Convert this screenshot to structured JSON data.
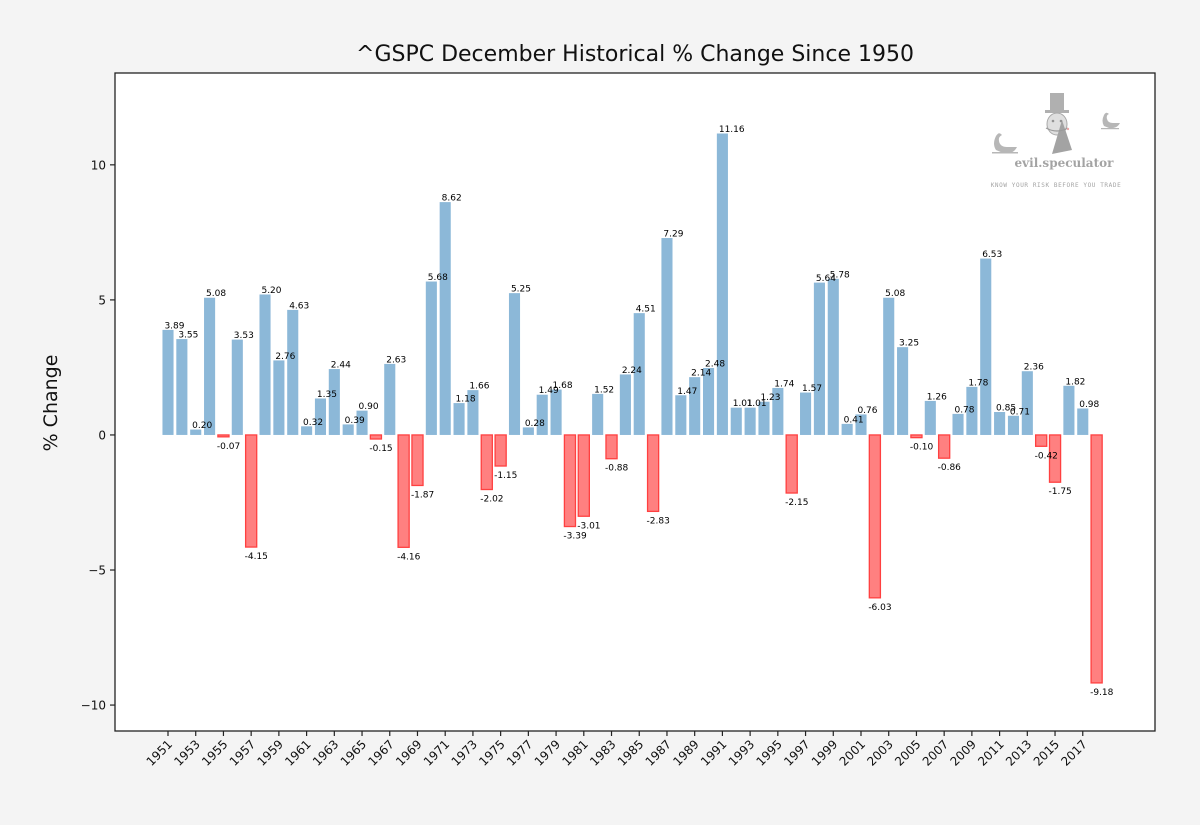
{
  "chart_data": {
    "type": "bar",
    "title": "^GSPC December Historical % Change Since 1950",
    "xlabel": "",
    "ylabel": "% Change",
    "ylim": [
      -10.96,
      13.4
    ],
    "yticks": [
      -10,
      -5,
      0,
      5,
      10
    ],
    "ytick_labels": [
      "−10",
      "−5",
      "0",
      "5",
      "10"
    ],
    "xtick_labels": [
      "1951",
      "1953",
      "1955",
      "1957",
      "1959",
      "1961",
      "1963",
      "1965",
      "1967",
      "1969",
      "1971",
      "1973",
      "1975",
      "1977",
      "1979",
      "1981",
      "1983",
      "1985",
      "1987",
      "1989",
      "1991",
      "1993",
      "1995",
      "1997",
      "1999",
      "2001",
      "2003",
      "2005",
      "2007",
      "2009",
      "2011",
      "2013",
      "2015",
      "2017"
    ],
    "grid": false,
    "positive_color": "#8cb8d8",
    "negative_fill": "#ff8080",
    "negative_edge": "#ff4040",
    "categories": [
      "1951",
      "1952",
      "1953",
      "1954",
      "1955",
      "1956",
      "1957",
      "1958",
      "1959",
      "1960",
      "1961",
      "1962",
      "1963",
      "1964",
      "1965",
      "1966",
      "1967",
      "1968",
      "1969",
      "1970",
      "1971",
      "1972",
      "1973",
      "1974",
      "1975",
      "1976",
      "1977",
      "1978",
      "1979",
      "1980",
      "1981",
      "1982",
      "1983",
      "1984",
      "1985",
      "1986",
      "1987",
      "1988",
      "1989",
      "1990",
      "1991",
      "1992",
      "1993",
      "1994",
      "1995",
      "1996",
      "1997",
      "1998",
      "1999",
      "2000",
      "2001",
      "2002",
      "2003",
      "2004",
      "2005",
      "2006",
      "2007",
      "2008",
      "2009",
      "2010",
      "2011",
      "2012",
      "2013",
      "2014",
      "2015",
      "2016",
      "2017",
      "2018"
    ],
    "values": [
      3.89,
      3.55,
      0.2,
      5.08,
      -0.07,
      3.53,
      -4.15,
      5.2,
      2.76,
      4.63,
      0.32,
      1.35,
      2.44,
      0.39,
      0.9,
      -0.15,
      2.63,
      -4.16,
      -1.87,
      5.68,
      8.62,
      1.18,
      1.66,
      -2.02,
      -1.15,
      5.25,
      0.28,
      1.49,
      1.68,
      -3.39,
      -3.01,
      1.52,
      -0.88,
      2.24,
      4.51,
      -2.83,
      7.29,
      1.47,
      2.14,
      2.48,
      11.16,
      1.01,
      1.01,
      1.23,
      1.74,
      -2.15,
      1.57,
      5.64,
      5.78,
      0.41,
      0.76,
      -6.03,
      5.08,
      3.25,
      -0.1,
      1.26,
      -0.86,
      0.78,
      1.78,
      6.53,
      0.85,
      0.71,
      2.36,
      -0.42,
      -1.75,
      1.82,
      0.98,
      -9.18
    ],
    "data_labels": [
      "3.89",
      "3.55",
      "0.20",
      "5.08",
      "-0.07",
      "3.53",
      "-4.15",
      "5.20",
      "2.76",
      "4.63",
      "0.32",
      "1.35",
      "2.44",
      "0.39",
      "0.90",
      "-0.15",
      "2.63",
      "-4.16",
      "-1.87",
      "5.68",
      "8.62",
      "1.18",
      "1.66",
      "-2.02",
      "-1.15",
      "5.25",
      "0.28",
      "1.49",
      "1.68",
      "-3.39",
      "-3.01",
      "1.52",
      "-0.88",
      "2.24",
      "4.51",
      "-2.83",
      "7.29",
      "1.47",
      "2.14",
      "2.48",
      "11.16",
      "1.01",
      "1.01",
      "1.23",
      "1.74",
      "-2.15",
      "1.57",
      "5.64",
      "5.78",
      "0.41",
      "0.76",
      "-6.03",
      "5.08",
      "3.25",
      "-0.10",
      "1.26",
      "-0.86",
      "0.78",
      "1.78",
      "6.53",
      "0.85",
      "0.71",
      "2.36",
      "-0.42",
      "-1.75",
      "1.82",
      "0.98",
      "-9.18"
    ]
  },
  "watermark": {
    "brand": "evil.speculator",
    "tagline": "KNOW YOUR RISK BEFORE YOU TRADE",
    "icons": [
      "swan-icon",
      "top-hat-villain-icon",
      "swan-icon"
    ]
  }
}
